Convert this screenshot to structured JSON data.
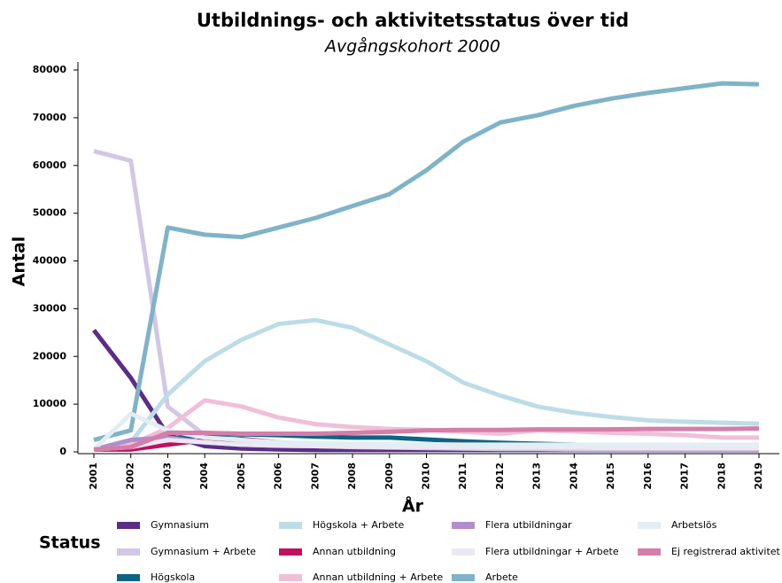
{
  "chart_data": {
    "type": "line",
    "title": "Utbildnings- och aktivitetsstatus över tid",
    "subtitle": "Avgångskohort 2000",
    "y_label": "Antal",
    "x_label": "År",
    "legend_title": "Status",
    "categories": [
      "2001",
      "2002",
      "2003",
      "2004",
      "2005",
      "2006",
      "2007",
      "2008",
      "2009",
      "2010",
      "2011",
      "2012",
      "2013",
      "2014",
      "2015",
      "2016",
      "2017",
      "2018",
      "2019"
    ],
    "ylim": [
      0,
      80000
    ],
    "yticks": [
      0,
      10000,
      20000,
      30000,
      40000,
      50000,
      60000,
      70000,
      80000
    ],
    "series": [
      {
        "name": "Gymnasium",
        "color": "#5b2d86",
        "values": [
          25500,
          15500,
          3500,
          1200,
          700,
          500,
          400,
          400,
          400,
          400,
          400,
          400,
          400,
          400,
          400,
          400,
          400,
          400,
          400
        ]
      },
      {
        "name": "Gymnasium + Arbete",
        "color": "#d2c7e4",
        "values": [
          63000,
          61000,
          9500,
          3500,
          2000,
          1500,
          1200,
          1000,
          900,
          800,
          700,
          600,
          600,
          500,
          500,
          500,
          500,
          500,
          500
        ]
      },
      {
        "name": "Högskola",
        "color": "#0e6384",
        "values": [
          500,
          500,
          2800,
          3500,
          3700,
          3500,
          3200,
          3000,
          3000,
          2600,
          2200,
          1900,
          1700,
          1500,
          1300,
          1200,
          1100,
          1000,
          1000
        ]
      },
      {
        "name": "Högskola + Arbete",
        "color": "#bcdde8",
        "values": [
          500,
          2000,
          12000,
          19000,
          23500,
          26800,
          27600,
          26000,
          22500,
          19000,
          14500,
          11800,
          9500,
          8200,
          7300,
          6600,
          6300,
          6100,
          5900
        ]
      },
      {
        "name": "Annan utbildning",
        "color": "#c0105f",
        "values": [
          500,
          500,
          1500,
          2500,
          2700,
          2000,
          1600,
          1500,
          1500,
          1500,
          1500,
          1400,
          1300,
          1200,
          1100,
          1000,
          1000,
          900,
          900
        ]
      },
      {
        "name": "Annan utbildning + Arbete",
        "color": "#f0bfd9",
        "values": [
          500,
          1500,
          5000,
          10800,
          9500,
          7200,
          5800,
          5200,
          4800,
          4600,
          4200,
          3800,
          4500,
          4300,
          4000,
          3800,
          3500,
          3000,
          3000
        ]
      },
      {
        "name": "Flera utbildningar",
        "color": "#b08fcc",
        "values": [
          500,
          2500,
          3000,
          2000,
          1500,
          1300,
          1200,
          1100,
          1000,
          1000,
          900,
          900,
          900,
          900,
          800,
          800,
          800,
          800,
          800
        ]
      },
      {
        "name": "Flera utbildningar + Arbete",
        "color": "#ece8f4",
        "values": [
          500,
          1000,
          2500,
          2000,
          1500,
          1300,
          1200,
          1100,
          1000,
          1000,
          900,
          900,
          900,
          900,
          800,
          800,
          800,
          800,
          800
        ]
      },
      {
        "name": "Arbete",
        "color": "#7fb3c8",
        "values": [
          2500,
          4500,
          47000,
          45500,
          45000,
          47000,
          49000,
          51500,
          54000,
          59000,
          65000,
          69000,
          70500,
          72500,
          74000,
          75200,
          76200,
          77200,
          77000
        ]
      },
      {
        "name": "Arbetslös",
        "color": "#e2eef4",
        "values": [
          500,
          8000,
          4500,
          3000,
          2500,
          2000,
          1800,
          1700,
          1600,
          1600,
          1500,
          1500,
          1500,
          1500,
          1500,
          1500,
          1500,
          1500,
          1500
        ]
      },
      {
        "name": "Ej registrerad aktivitet",
        "color": "#d47ea9",
        "values": [
          500,
          1000,
          4000,
          4000,
          3800,
          3800,
          3800,
          4000,
          4200,
          4500,
          4600,
          4600,
          4700,
          4700,
          4700,
          4800,
          4800,
          4800,
          4900
        ]
      }
    ]
  }
}
